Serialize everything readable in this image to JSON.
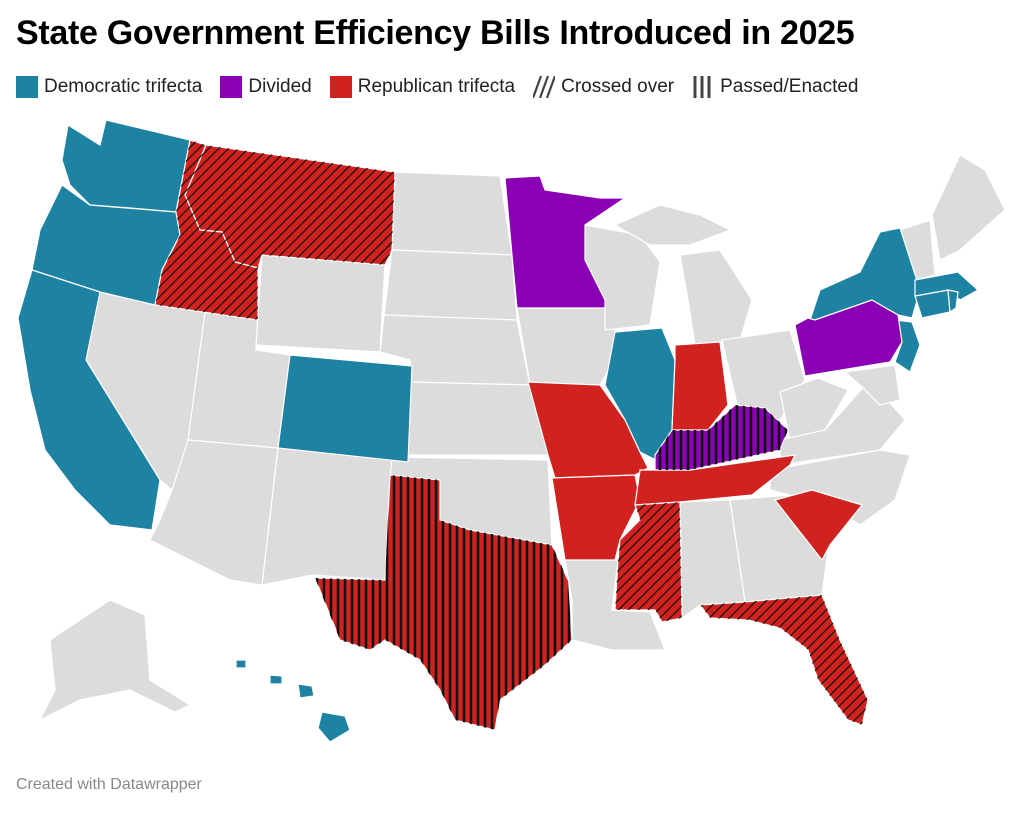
{
  "title": "State Government Efficiency Bills Introduced in 2025",
  "footer": "Created with Datawrapper",
  "colors": {
    "democratic": "#1e82a3",
    "divided": "#8a00b4",
    "republican": "#d0221f",
    "none": "#dcdcdc",
    "border": "#ffffff",
    "hatch": "#111111"
  },
  "legend": [
    {
      "label": "Democratic trifecta",
      "kind": "democratic"
    },
    {
      "label": "Divided",
      "kind": "divided"
    },
    {
      "label": "Republican trifecta",
      "kind": "republican"
    },
    {
      "label": "Crossed over",
      "kind": "crossed"
    },
    {
      "label": "Passed/Enacted",
      "kind": "passed"
    }
  ],
  "states": [
    {
      "abbr": "WA",
      "category": "democratic",
      "status": "introduced"
    },
    {
      "abbr": "OR",
      "category": "democratic",
      "status": "introduced"
    },
    {
      "abbr": "CA",
      "category": "democratic",
      "status": "introduced"
    },
    {
      "abbr": "CO",
      "category": "democratic",
      "status": "introduced"
    },
    {
      "abbr": "IL",
      "category": "democratic",
      "status": "introduced"
    },
    {
      "abbr": "NY",
      "category": "democratic",
      "status": "introduced"
    },
    {
      "abbr": "NJ",
      "category": "democratic",
      "status": "introduced"
    },
    {
      "abbr": "CT",
      "category": "democratic",
      "status": "introduced"
    },
    {
      "abbr": "MA",
      "category": "democratic",
      "status": "introduced"
    },
    {
      "abbr": "RI",
      "category": "democratic",
      "status": "introduced"
    },
    {
      "abbr": "HI",
      "category": "democratic",
      "status": "introduced"
    },
    {
      "abbr": "MN",
      "category": "divided",
      "status": "introduced"
    },
    {
      "abbr": "PA",
      "category": "divided",
      "status": "introduced"
    },
    {
      "abbr": "KY",
      "category": "divided",
      "status": "passed"
    },
    {
      "abbr": "MT",
      "category": "republican",
      "status": "crossed"
    },
    {
      "abbr": "ID",
      "category": "republican",
      "status": "crossed"
    },
    {
      "abbr": "MO",
      "category": "republican",
      "status": "introduced"
    },
    {
      "abbr": "AR",
      "category": "republican",
      "status": "introduced"
    },
    {
      "abbr": "IN",
      "category": "republican",
      "status": "introduced"
    },
    {
      "abbr": "TN",
      "category": "republican",
      "status": "introduced"
    },
    {
      "abbr": "SC",
      "category": "republican",
      "status": "introduced"
    },
    {
      "abbr": "MS",
      "category": "republican",
      "status": "crossed"
    },
    {
      "abbr": "FL",
      "category": "republican",
      "status": "crossed"
    },
    {
      "abbr": "TX",
      "category": "republican",
      "status": "passed"
    }
  ]
}
